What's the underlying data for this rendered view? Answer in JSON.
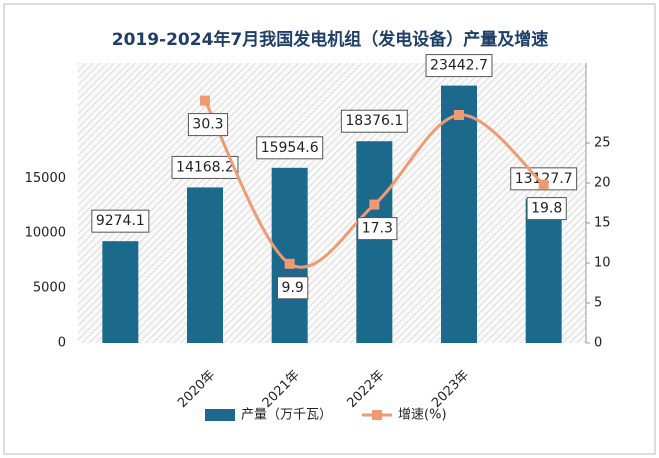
{
  "chart_data": {
    "type": "bar_line",
    "title": "2019-2024年7月我国发电机组（发电设备）产量及增速",
    "categories": [
      null,
      "2020年",
      "2021年",
      "2022年",
      "2023年",
      null
    ],
    "series": [
      {
        "name": "产量（万千瓦）",
        "type": "bar",
        "color": "#1b6a8c",
        "values": [
          9274.1,
          14168.2,
          15954.6,
          18376.1,
          23442.7,
          13127.7
        ]
      },
      {
        "name": "增速(%)",
        "type": "line",
        "axis": "y2",
        "color": "#ee9a72",
        "values": [
          null,
          30.3,
          9.9,
          17.3,
          28.5,
          19.8
        ],
        "value_labels": [
          null,
          "30.3",
          "9.9",
          "17.3",
          null,
          "19.8"
        ]
      }
    ],
    "ylim": [
      0,
      25500
    ],
    "yticks": [
      0,
      5000,
      10000,
      15000
    ],
    "y2lim": [
      0,
      35
    ],
    "y2ticks": [
      0,
      5,
      10,
      15,
      20,
      25
    ],
    "legend": "bottom"
  }
}
